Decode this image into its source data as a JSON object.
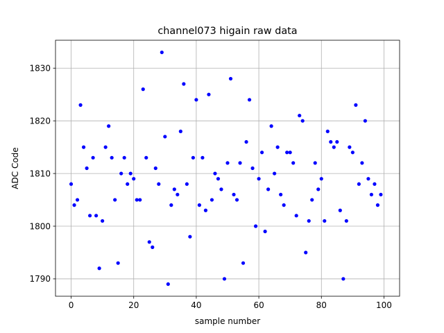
{
  "chart_data": {
    "type": "scatter",
    "title": "channel073 higain raw data",
    "xlabel": "sample number",
    "ylabel": "ADC Code",
    "xlim": [
      -5,
      105
    ],
    "ylim": [
      1786.7,
      1835.3
    ],
    "xticks": [
      0,
      20,
      40,
      60,
      80,
      100
    ],
    "yticks": [
      1790,
      1800,
      1810,
      1820,
      1830
    ],
    "grid": true,
    "marker_color": "#0000ff",
    "series": [
      {
        "x": [
          0,
          1,
          2,
          3,
          4,
          5,
          6,
          7,
          8,
          9,
          10,
          11,
          12,
          13,
          14,
          15,
          16,
          17,
          18,
          19,
          20,
          21,
          22,
          23,
          24,
          25,
          26,
          27,
          28,
          29,
          30,
          31,
          32,
          33,
          34,
          35,
          36,
          37,
          38,
          39,
          40,
          41,
          42,
          43,
          44,
          45,
          46,
          47,
          48,
          49,
          50,
          51,
          52,
          53,
          54,
          55,
          56,
          57,
          58,
          59,
          60,
          61,
          62,
          63,
          64,
          65,
          66,
          67,
          68,
          69,
          70,
          71,
          72,
          73,
          74,
          75,
          76,
          77,
          78,
          79,
          80,
          81,
          82,
          83,
          84,
          85,
          86,
          87,
          88,
          89,
          90,
          91,
          92,
          93,
          94,
          95,
          96,
          97,
          98,
          99
        ],
        "y": [
          1808,
          1804,
          1805,
          1823,
          1815,
          1811,
          1802,
          1813,
          1802,
          1792,
          1801,
          1815,
          1819,
          1813,
          1805,
          1793,
          1810,
          1813,
          1808,
          1810,
          1809,
          1805,
          1805,
          1826,
          1813,
          1797,
          1796,
          1811,
          1808,
          1833,
          1817,
          1789,
          1804,
          1807,
          1806,
          1818,
          1827,
          1808,
          1798,
          1813,
          1824,
          1804,
          1813,
          1803,
          1825,
          1805,
          1810,
          1809,
          1807,
          1790,
          1812,
          1828,
          1806,
          1805,
          1812,
          1793,
          1816,
          1824,
          1811,
          1800,
          1809,
          1814,
          1799,
          1807,
          1819,
          1810,
          1815,
          1806,
          1804,
          1814,
          1814,
          1812,
          1802,
          1821,
          1820,
          1795,
          1801,
          1805,
          1812,
          1807,
          1809,
          1801,
          1818,
          1816,
          1815,
          1816,
          1803,
          1790,
          1801,
          1815,
          1814,
          1823,
          1808,
          1812,
          1820,
          1809,
          1806,
          1808,
          1804,
          1806
        ]
      }
    ]
  }
}
